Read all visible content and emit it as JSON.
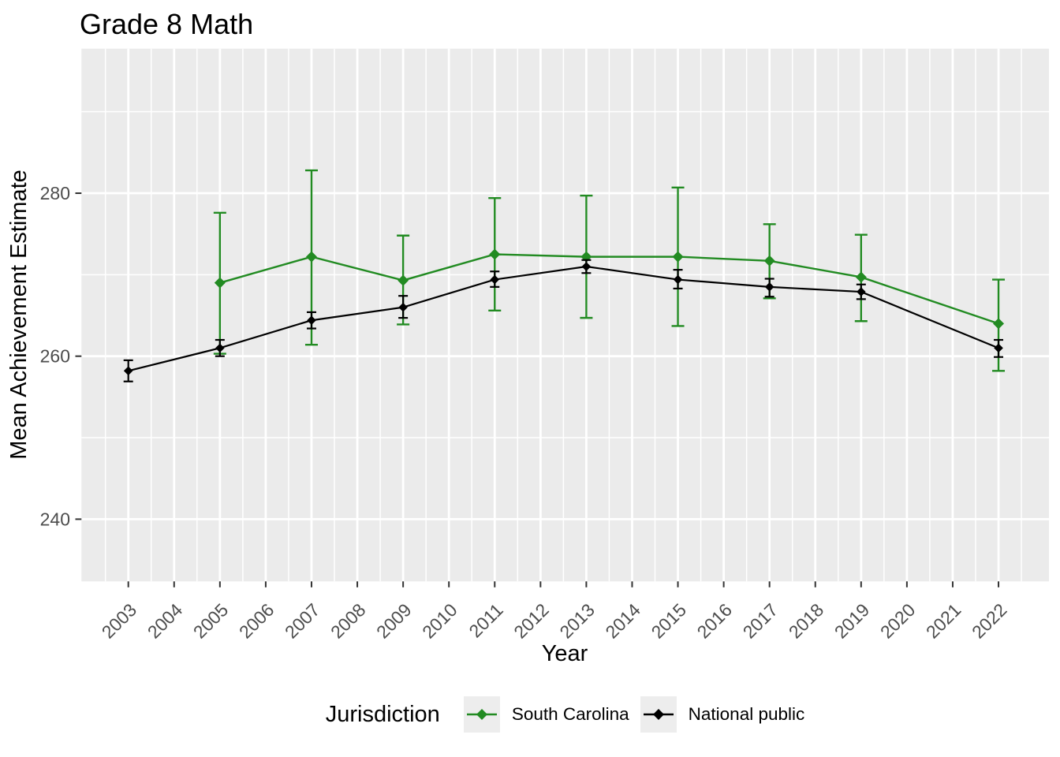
{
  "title": "Grade 8 Math",
  "axes": {
    "x": {
      "label": "Year",
      "ticks": [
        2003,
        2004,
        2005,
        2006,
        2007,
        2008,
        2009,
        2010,
        2011,
        2012,
        2013,
        2014,
        2015,
        2016,
        2017,
        2018,
        2019,
        2020,
        2021,
        2022
      ]
    },
    "y": {
      "label": "Mean Achievement Estimate",
      "ticks": [
        240,
        260,
        280
      ],
      "minor_ticks": [
        250,
        270,
        290
      ]
    }
  },
  "legend": {
    "title": "Jurisdiction",
    "entries": [
      {
        "label": "South Carolina",
        "color": "#228B22"
      },
      {
        "label": "National public",
        "color": "#000000"
      }
    ]
  },
  "colors": {
    "panel_background": "#EBEBEB",
    "gridline": "#FFFFFF",
    "tick_label": "#4D4D4D",
    "tick_mark": "#333333",
    "legend_key_background": "#EDEDED",
    "south_carolina": "#228B22",
    "national_public": "#000000"
  },
  "chart_data": {
    "type": "line",
    "title": "Grade 8 Math",
    "xlabel": "Year",
    "ylabel": "Mean Achievement Estimate",
    "x_ticks": [
      2003,
      2004,
      2005,
      2006,
      2007,
      2008,
      2009,
      2010,
      2011,
      2012,
      2013,
      2014,
      2015,
      2016,
      2017,
      2018,
      2019,
      2020,
      2021,
      2022
    ],
    "y_ticks": [
      240,
      260,
      280
    ],
    "ylim": [
      232,
      298
    ],
    "grid": "white major and minor gridlines on grey panel",
    "legend_position": "bottom",
    "marker": "filled diamond with vertical error bars",
    "series": [
      {
        "name": "South Carolina",
        "color": "#228B22",
        "points": [
          {
            "year": 2005,
            "mean": 269.0,
            "lower": 260.3,
            "upper": 277.6
          },
          {
            "year": 2007,
            "mean": 272.2,
            "lower": 261.4,
            "upper": 282.8
          },
          {
            "year": 2009,
            "mean": 269.3,
            "lower": 263.9,
            "upper": 274.8
          },
          {
            "year": 2011,
            "mean": 272.5,
            "lower": 265.6,
            "upper": 279.4
          },
          {
            "year": 2013,
            "mean": 272.2,
            "lower": 264.7,
            "upper": 279.7
          },
          {
            "year": 2015,
            "mean": 272.2,
            "lower": 263.7,
            "upper": 280.7
          },
          {
            "year": 2017,
            "mean": 271.7,
            "lower": 267.1,
            "upper": 276.2
          },
          {
            "year": 2019,
            "mean": 269.7,
            "lower": 264.3,
            "upper": 274.9
          },
          {
            "year": 2022,
            "mean": 264.0,
            "lower": 258.2,
            "upper": 269.4
          }
        ]
      },
      {
        "name": "National public",
        "color": "#000000",
        "points": [
          {
            "year": 2003,
            "mean": 258.2,
            "lower": 256.9,
            "upper": 259.5
          },
          {
            "year": 2005,
            "mean": 261.0,
            "lower": 260.0,
            "upper": 262.0
          },
          {
            "year": 2007,
            "mean": 264.4,
            "lower": 263.4,
            "upper": 265.4
          },
          {
            "year": 2009,
            "mean": 266.0,
            "lower": 264.7,
            "upper": 267.4
          },
          {
            "year": 2011,
            "mean": 269.4,
            "lower": 268.5,
            "upper": 270.4
          },
          {
            "year": 2013,
            "mean": 271.0,
            "lower": 270.2,
            "upper": 271.8
          },
          {
            "year": 2015,
            "mean": 269.4,
            "lower": 268.3,
            "upper": 270.6
          },
          {
            "year": 2017,
            "mean": 268.5,
            "lower": 267.3,
            "upper": 269.5
          },
          {
            "year": 2019,
            "mean": 267.9,
            "lower": 267.0,
            "upper": 268.8
          },
          {
            "year": 2022,
            "mean": 261.0,
            "lower": 259.9,
            "upper": 262.0
          }
        ]
      }
    ]
  }
}
